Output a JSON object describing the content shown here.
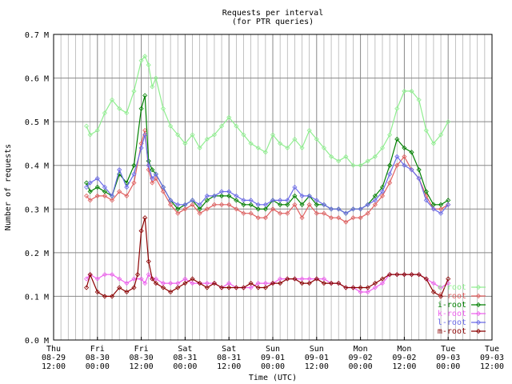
{
  "chart_data": {
    "type": "line",
    "title": "Requests per interval",
    "subtitle": "(for PTR queries)",
    "xlabel": "Time (UTC)",
    "ylabel": "Number of requests",
    "ylim": [
      0,
      0.7
    ],
    "yticks": [
      "0.0 M",
      "0.1 M",
      "0.2 M",
      "0.3 M",
      "0.4 M",
      "0.5 M",
      "0.6 M",
      "0.7 M"
    ],
    "xlim": [
      0,
      120
    ],
    "xticks": [
      {
        "h": 0,
        "label": [
          "Thu",
          "08-29",
          "12:00"
        ]
      },
      {
        "h": 12,
        "label": [
          "Fri",
          "08-30",
          "00:00"
        ]
      },
      {
        "h": 24,
        "label": [
          "Fri",
          "08-30",
          "12:00"
        ]
      },
      {
        "h": 36,
        "label": [
          "Sat",
          "08-31",
          "00:00"
        ]
      },
      {
        "h": 48,
        "label": [
          "Sat",
          "08-31",
          "12:00"
        ]
      },
      {
        "h": 60,
        "label": [
          "Sun",
          "09-01",
          "00:00"
        ]
      },
      {
        "h": 72,
        "label": [
          "Sun",
          "09-01",
          "12:00"
        ]
      },
      {
        "h": 84,
        "label": [
          "Mon",
          "09-02",
          "00:00"
        ]
      },
      {
        "h": 96,
        "label": [
          "Mon",
          "09-02",
          "12:00"
        ]
      },
      {
        "h": 108,
        "label": [
          "Tue",
          "09-03",
          "00:00"
        ]
      },
      {
        "h": 120,
        "label": [
          "Tue",
          "09-03",
          "12:00"
        ]
      }
    ],
    "grid": true,
    "legend_position": "bottom-right",
    "x_unit": "hours since Thu 08-29 12:00",
    "series": [
      {
        "name": "e-root",
        "color": "#90ee90",
        "x": [
          9,
          10,
          12,
          14,
          16,
          18,
          20,
          22,
          24,
          25,
          26,
          27,
          28,
          30,
          32,
          34,
          36,
          38,
          40,
          42,
          44,
          46,
          48,
          50,
          52,
          54,
          56,
          58,
          60,
          62,
          64,
          66,
          68,
          70,
          72,
          74,
          76,
          78,
          80,
          82,
          84,
          86,
          88,
          90,
          92,
          94,
          96,
          98,
          100,
          102,
          104,
          106,
          108
        ],
        "y": [
          0.49,
          0.47,
          0.48,
          0.52,
          0.55,
          0.53,
          0.52,
          0.57,
          0.64,
          0.65,
          0.63,
          0.58,
          0.6,
          0.53,
          0.49,
          0.47,
          0.45,
          0.47,
          0.44,
          0.46,
          0.47,
          0.49,
          0.51,
          0.49,
          0.47,
          0.45,
          0.44,
          0.43,
          0.47,
          0.45,
          0.44,
          0.46,
          0.44,
          0.48,
          0.46,
          0.44,
          0.42,
          0.41,
          0.42,
          0.4,
          0.4,
          0.41,
          0.42,
          0.44,
          0.47,
          0.53,
          0.57,
          0.57,
          0.55,
          0.48,
          0.45,
          0.47,
          0.5
        ]
      },
      {
        "name": "f-root",
        "color": "#e06060",
        "x": [
          9,
          10,
          12,
          14,
          16,
          18,
          20,
          22,
          24,
          25,
          26,
          27,
          28,
          30,
          32,
          34,
          36,
          38,
          40,
          42,
          44,
          46,
          48,
          50,
          52,
          54,
          56,
          58,
          60,
          62,
          64,
          66,
          68,
          70,
          72,
          74,
          76,
          78,
          80,
          82,
          84,
          86,
          88,
          90,
          92,
          94,
          96,
          98,
          100,
          102,
          104,
          106,
          108
        ],
        "y": [
          0.33,
          0.32,
          0.33,
          0.33,
          0.32,
          0.34,
          0.33,
          0.36,
          0.45,
          0.48,
          0.39,
          0.36,
          0.37,
          0.34,
          0.31,
          0.29,
          0.3,
          0.31,
          0.29,
          0.3,
          0.31,
          0.31,
          0.31,
          0.3,
          0.29,
          0.29,
          0.28,
          0.28,
          0.3,
          0.29,
          0.29,
          0.31,
          0.28,
          0.31,
          0.29,
          0.29,
          0.28,
          0.28,
          0.27,
          0.28,
          0.28,
          0.29,
          0.31,
          0.33,
          0.36,
          0.4,
          0.42,
          0.39,
          0.37,
          0.33,
          0.3,
          0.3,
          0.31
        ]
      },
      {
        "name": "i-root",
        "color": "#008000",
        "x": [
          9,
          10,
          12,
          14,
          16,
          18,
          20,
          22,
          24,
          25,
          26,
          27,
          28,
          30,
          32,
          34,
          36,
          38,
          40,
          42,
          44,
          46,
          48,
          50,
          52,
          54,
          56,
          58,
          60,
          62,
          64,
          66,
          68,
          70,
          72,
          74,
          76,
          78,
          80,
          82,
          84,
          86,
          88,
          90,
          92,
          94,
          96,
          98,
          100,
          102,
          104,
          106,
          108
        ],
        "y": [
          0.36,
          0.34,
          0.35,
          0.34,
          0.33,
          0.38,
          0.36,
          0.4,
          0.53,
          0.56,
          0.41,
          0.39,
          0.38,
          0.35,
          0.32,
          0.3,
          0.31,
          0.32,
          0.3,
          0.32,
          0.33,
          0.33,
          0.33,
          0.32,
          0.31,
          0.31,
          0.3,
          0.3,
          0.32,
          0.31,
          0.31,
          0.33,
          0.31,
          0.33,
          0.31,
          0.31,
          0.3,
          0.3,
          0.29,
          0.3,
          0.3,
          0.31,
          0.33,
          0.35,
          0.4,
          0.46,
          0.44,
          0.43,
          0.39,
          0.34,
          0.31,
          0.31,
          0.32
        ]
      },
      {
        "name": "k-root",
        "color": "#ee60ee",
        "x": [
          9,
          10,
          12,
          14,
          16,
          18,
          20,
          22,
          24,
          25,
          26,
          27,
          28,
          30,
          32,
          34,
          36,
          38,
          40,
          42,
          44,
          46,
          48,
          50,
          52,
          54,
          56,
          58,
          60,
          62,
          64,
          66,
          68,
          70,
          72,
          74,
          76,
          78,
          80,
          82,
          84,
          86,
          88,
          90,
          92,
          94,
          96,
          98,
          100,
          102,
          104,
          106,
          108
        ],
        "y": [
          0.14,
          0.15,
          0.14,
          0.15,
          0.15,
          0.14,
          0.13,
          0.14,
          0.14,
          0.13,
          0.15,
          0.14,
          0.14,
          0.13,
          0.13,
          0.13,
          0.14,
          0.13,
          0.13,
          0.13,
          0.13,
          0.12,
          0.13,
          0.12,
          0.12,
          0.12,
          0.13,
          0.13,
          0.13,
          0.14,
          0.14,
          0.14,
          0.14,
          0.14,
          0.14,
          0.14,
          0.13,
          0.13,
          0.12,
          0.12,
          0.11,
          0.11,
          0.12,
          0.13,
          0.15,
          0.15,
          0.15,
          0.15,
          0.15,
          0.14,
          0.13,
          0.12,
          0.13
        ]
      },
      {
        "name": "l-root",
        "color": "#6a6ae8",
        "x": [
          9,
          10,
          12,
          14,
          16,
          18,
          20,
          22,
          24,
          25,
          26,
          27,
          28,
          30,
          32,
          34,
          36,
          38,
          40,
          42,
          44,
          46,
          48,
          50,
          52,
          54,
          56,
          58,
          60,
          62,
          64,
          66,
          68,
          70,
          72,
          74,
          76,
          78,
          80,
          82,
          84,
          86,
          88,
          90,
          92,
          94,
          96,
          98,
          100,
          102,
          104,
          106,
          108
        ],
        "y": [
          0.35,
          0.36,
          0.37,
          0.35,
          0.33,
          0.39,
          0.35,
          0.38,
          0.44,
          0.47,
          0.4,
          0.37,
          0.38,
          0.35,
          0.32,
          0.31,
          0.31,
          0.32,
          0.31,
          0.33,
          0.33,
          0.34,
          0.34,
          0.33,
          0.32,
          0.32,
          0.31,
          0.31,
          0.32,
          0.32,
          0.32,
          0.35,
          0.33,
          0.33,
          0.32,
          0.31,
          0.3,
          0.3,
          0.29,
          0.3,
          0.3,
          0.31,
          0.32,
          0.34,
          0.38,
          0.42,
          0.4,
          0.39,
          0.37,
          0.32,
          0.3,
          0.29,
          0.31
        ]
      },
      {
        "name": "m-root",
        "color": "#8b0000",
        "x": [
          9,
          10,
          12,
          14,
          16,
          18,
          20,
          22,
          23,
          24,
          25,
          26,
          27,
          28,
          30,
          32,
          34,
          36,
          38,
          40,
          42,
          44,
          46,
          48,
          50,
          52,
          54,
          56,
          58,
          60,
          62,
          64,
          66,
          68,
          70,
          72,
          74,
          76,
          78,
          80,
          82,
          84,
          86,
          88,
          90,
          92,
          94,
          96,
          98,
          100,
          102,
          104,
          106,
          108
        ],
        "y": [
          0.12,
          0.15,
          0.11,
          0.1,
          0.1,
          0.12,
          0.11,
          0.12,
          0.15,
          0.25,
          0.28,
          0.18,
          0.14,
          0.13,
          0.12,
          0.11,
          0.12,
          0.13,
          0.14,
          0.13,
          0.12,
          0.13,
          0.12,
          0.12,
          0.12,
          0.12,
          0.13,
          0.12,
          0.12,
          0.13,
          0.13,
          0.14,
          0.14,
          0.13,
          0.13,
          0.14,
          0.13,
          0.13,
          0.13,
          0.12,
          0.12,
          0.12,
          0.12,
          0.13,
          0.14,
          0.15,
          0.15,
          0.15,
          0.15,
          0.15,
          0.14,
          0.11,
          0.1,
          0.14
        ]
      }
    ]
  }
}
